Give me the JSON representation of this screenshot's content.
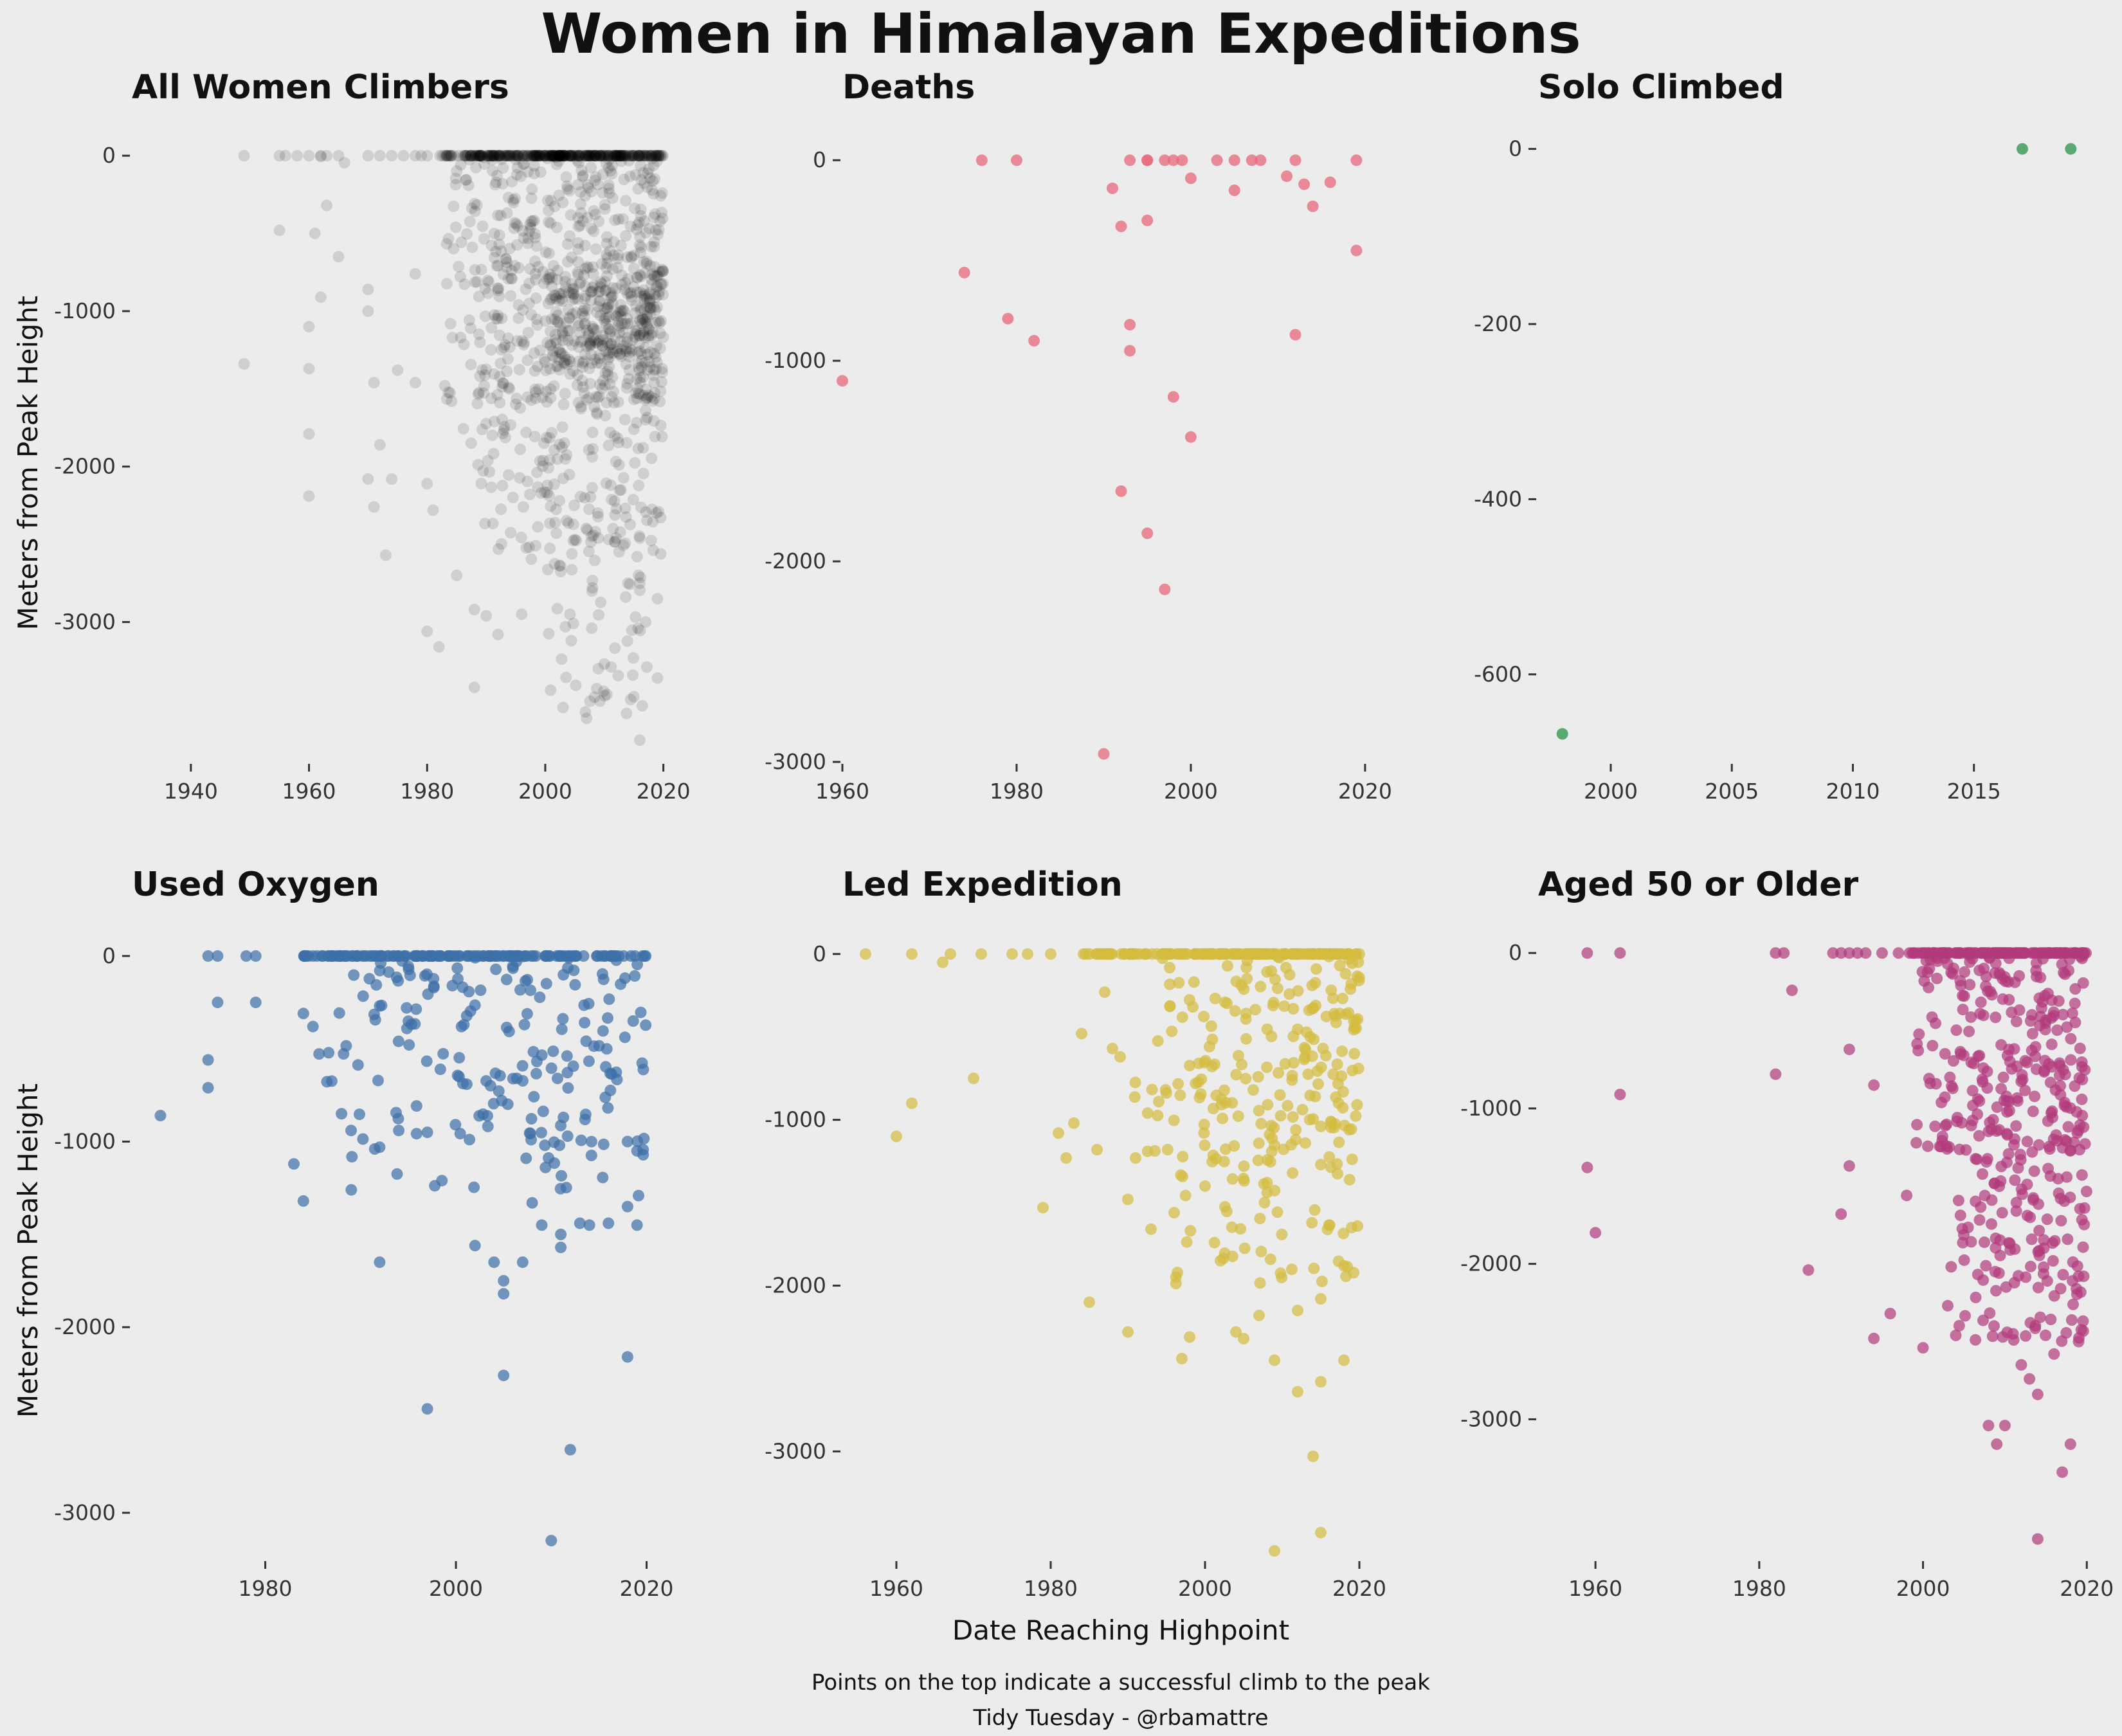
{
  "figure": {
    "title": "Women in Himalayan Expeditions",
    "xlabel": "Date Reaching Highpoint",
    "ylabel": "Meters from Peak Height",
    "caption_lines": [
      "Points on the top indicate a successful climb to the peak",
      "Tidy Tuesday - @rbamattre"
    ],
    "background": "#ececec"
  },
  "chart_data": [
    {
      "type": "scatter",
      "title": "All Women Climbers",
      "color": "#000000",
      "point_opacity": 0.12,
      "xlim": [
        1930,
        2022
      ],
      "ylim": [
        -3900,
        100
      ],
      "xticks": [
        1940,
        1960,
        1980,
        2000,
        2020
      ],
      "yticks": [
        0,
        -1000,
        -2000,
        -3000
      ],
      "seed": 11,
      "summit_points": [
        [
          1949,
          0
        ],
        [
          1955,
          0
        ],
        [
          1956,
          0
        ],
        [
          1958,
          0
        ],
        [
          1960,
          0
        ],
        [
          1962,
          0
        ],
        [
          1963,
          0
        ],
        [
          1965,
          0
        ],
        [
          1970,
          0
        ],
        [
          1972,
          0
        ],
        [
          1974,
          0
        ],
        [
          1976,
          0
        ],
        [
          1978,
          0
        ],
        [
          1979,
          0
        ],
        [
          1980,
          0
        ]
      ],
      "clusters": [
        {
          "x": [
            1982,
            2020
          ],
          "y": [
            0,
            0
          ],
          "n": 340,
          "skew": 1.4
        },
        {
          "x": [
            1983,
            2020
          ],
          "y": [
            -1600,
            0
          ],
          "n": 520,
          "skew": 1.3
        },
        {
          "x": [
            2000,
            2020
          ],
          "y": [
            -1400,
            -700
          ],
          "n": 230,
          "skew": 1.0
        },
        {
          "x": [
            1986,
            2020
          ],
          "y": [
            -2600,
            -1500
          ],
          "n": 180,
          "skew": 1.2
        },
        {
          "x": [
            2000,
            2018
          ],
          "y": [
            -3600,
            -2600
          ],
          "n": 50,
          "skew": 1.0
        }
      ],
      "points": [
        [
          1949,
          -1340
        ],
        [
          1955,
          -480
        ],
        [
          1960,
          -1100
        ],
        [
          1960,
          -1370
        ],
        [
          1960,
          -1790
        ],
        [
          1960,
          -2190
        ],
        [
          1961,
          -500
        ],
        [
          1962,
          -910
        ],
        [
          1963,
          -320
        ],
        [
          1965,
          -650
        ],
        [
          1966,
          -45
        ],
        [
          1970,
          -860
        ],
        [
          1970,
          -2080
        ],
        [
          1971,
          -1460
        ],
        [
          1971,
          -2260
        ],
        [
          1972,
          -1860
        ],
        [
          1973,
          -2570
        ],
        [
          1974,
          -2080
        ],
        [
          1975,
          -1380
        ],
        [
          1978,
          -1460
        ],
        [
          1980,
          -3060
        ],
        [
          1980,
          -2110
        ],
        [
          1981,
          -2280
        ],
        [
          1982,
          -3160
        ],
        [
          1983,
          -1480
        ],
        [
          1985,
          -2700
        ],
        [
          1988,
          -3420
        ],
        [
          1988,
          -2920
        ],
        [
          1990,
          -2960
        ],
        [
          1992,
          -3080
        ],
        [
          1996,
          -2950
        ],
        [
          2003,
          -3550
        ],
        [
          2007,
          -3620
        ],
        [
          2008,
          -2780
        ],
        [
          2010,
          -3270
        ],
        [
          2015,
          -3480
        ],
        [
          2016,
          -3760
        ],
        [
          2017,
          -3000
        ],
        [
          2019,
          -3360
        ],
        [
          2019,
          -2850
        ],
        [
          2014,
          -2750
        ],
        [
          2016,
          -2750
        ],
        [
          2005,
          -2470
        ],
        [
          2009,
          -2460
        ],
        [
          2012,
          -2460
        ],
        [
          2016,
          -2460
        ],
        [
          2008,
          -1100
        ],
        [
          2010,
          -1060
        ],
        [
          2013,
          -1080
        ],
        [
          2016,
          -1060
        ],
        [
          2008,
          -1780
        ],
        [
          2011,
          -1780
        ],
        [
          2015,
          -1760
        ],
        [
          1962,
          -5
        ],
        [
          1970,
          -1000
        ],
        [
          1978,
          -760
        ]
      ]
    },
    {
      "type": "scatter",
      "title": "Deaths",
      "color": "#e8677a",
      "point_opacity": 0.75,
      "xlim": [
        1960,
        2022
      ],
      "ylim": [
        -3000,
        100
      ],
      "xticks": [
        1960,
        1980,
        2000,
        2020
      ],
      "yticks": [
        0,
        -1000,
        -2000,
        -3000
      ],
      "points": [
        [
          1960,
          -1100
        ],
        [
          1974,
          -560
        ],
        [
          1976,
          0
        ],
        [
          1979,
          -790
        ],
        [
          1980,
          0
        ],
        [
          1982,
          -900
        ],
        [
          1990,
          -2960
        ],
        [
          1991,
          -140
        ],
        [
          1992,
          -330
        ],
        [
          1992,
          -1650
        ],
        [
          1993,
          -950
        ],
        [
          1993,
          -820
        ],
        [
          1993,
          0
        ],
        [
          1995,
          0
        ],
        [
          1995,
          0
        ],
        [
          1995,
          -300
        ],
        [
          1995,
          -1860
        ],
        [
          1997,
          0
        ],
        [
          1997,
          -2140
        ],
        [
          1998,
          -1180
        ],
        [
          1998,
          0
        ],
        [
          1999,
          0
        ],
        [
          2000,
          -1380
        ],
        [
          2000,
          -90
        ],
        [
          2003,
          0
        ],
        [
          2005,
          -150
        ],
        [
          2005,
          0
        ],
        [
          2007,
          0
        ],
        [
          2008,
          0
        ],
        [
          2011,
          -80
        ],
        [
          2012,
          0
        ],
        [
          2012,
          -870
        ],
        [
          2013,
          -120
        ],
        [
          2014,
          -230
        ],
        [
          2016,
          -110
        ],
        [
          2019,
          0
        ],
        [
          2019,
          -450
        ]
      ]
    },
    {
      "type": "scatter",
      "title": "Solo Climbed",
      "color": "#3f9e5a",
      "point_opacity": 0.85,
      "xlim": [
        1997,
        2020
      ],
      "ylim": [
        -700,
        10
      ],
      "xticks": [
        2000,
        2005,
        2010,
        2015
      ],
      "yticks": [
        0,
        -200,
        -400,
        -600
      ],
      "points": [
        [
          1998,
          -668
        ],
        [
          2017,
          0
        ],
        [
          2019,
          0
        ]
      ]
    },
    {
      "type": "scatter",
      "title": "Used Oxygen",
      "color": "#3d6fa8",
      "point_opacity": 0.7,
      "xlim": [
        1966,
        2023
      ],
      "ylim": [
        -3250,
        100
      ],
      "xticks": [
        1980,
        2000,
        2020
      ],
      "yticks": [
        0,
        -1000,
        -2000,
        -3000
      ],
      "seed": 22,
      "summit_points": [
        [
          1974,
          0
        ],
        [
          1975,
          0
        ],
        [
          1978,
          0
        ],
        [
          1979,
          0
        ]
      ],
      "clusters": [
        {
          "x": [
            1984,
            2020
          ],
          "y": [
            0,
            0
          ],
          "n": 150,
          "skew": 1.0
        },
        {
          "x": [
            1985,
            2020
          ],
          "y": [
            -700,
            0
          ],
          "n": 120,
          "skew": 1.3
        },
        {
          "x": [
            1988,
            2020
          ],
          "y": [
            -1300,
            -600
          ],
          "n": 70,
          "skew": 1.1
        }
      ],
      "points": [
        [
          1969,
          -860
        ],
        [
          1974,
          -560
        ],
        [
          1974,
          -710
        ],
        [
          1975,
          -250
        ],
        [
          1979,
          -250
        ],
        [
          1983,
          -1120
        ],
        [
          1984,
          -1320
        ],
        [
          1984,
          -310
        ],
        [
          1985,
          -380
        ],
        [
          1988,
          -850
        ],
        [
          1989,
          -940
        ],
        [
          1992,
          -1030
        ],
        [
          1992,
          -1650
        ],
        [
          1994,
          -940
        ],
        [
          1997,
          -950
        ],
        [
          1997,
          -2440
        ],
        [
          2002,
          -1560
        ],
        [
          2004,
          -1650
        ],
        [
          2005,
          -1750
        ],
        [
          2005,
          -1820
        ],
        [
          2005,
          -2260
        ],
        [
          2007,
          -1650
        ],
        [
          2008,
          -1330
        ],
        [
          2009,
          -1450
        ],
        [
          2011,
          -1500
        ],
        [
          2011,
          -1570
        ],
        [
          2012,
          -2660
        ],
        [
          2013,
          -1440
        ],
        [
          2014,
          -1450
        ],
        [
          2016,
          -1440
        ],
        [
          2018,
          -1350
        ],
        [
          2018,
          -2160
        ],
        [
          2019,
          -1450
        ],
        [
          2010,
          -3150
        ],
        [
          2018,
          -1000
        ],
        [
          2019,
          -1050
        ]
      ]
    },
    {
      "type": "scatter",
      "title": "Led Expedition",
      "color": "#d4bc3f",
      "point_opacity": 0.7,
      "xlim": [
        1953,
        2023
      ],
      "ylim": [
        -3650,
        100
      ],
      "xticks": [
        1960,
        1980,
        2000,
        2020
      ],
      "yticks": [
        0,
        -1000,
        -2000,
        -3000
      ],
      "seed": 33,
      "summit_points": [
        [
          1956,
          0
        ],
        [
          1962,
          0
        ],
        [
          1967,
          0
        ],
        [
          1971,
          0
        ],
        [
          1975,
          0
        ],
        [
          1977,
          0
        ],
        [
          1980,
          0
        ]
      ],
      "clusters": [
        {
          "x": [
            1983,
            2020
          ],
          "y": [
            0,
            0
          ],
          "n": 170,
          "skew": 1.2
        },
        {
          "x": [
            1990,
            2020
          ],
          "y": [
            -1300,
            0
          ],
          "n": 210,
          "skew": 1.4
        },
        {
          "x": [
            1996,
            2020
          ],
          "y": [
            -2000,
            -1300
          ],
          "n": 50,
          "skew": 1.1
        }
      ],
      "points": [
        [
          1960,
          -1100
        ],
        [
          1962,
          -900
        ],
        [
          1966,
          -50
        ],
        [
          1970,
          -750
        ],
        [
          1979,
          -1530
        ],
        [
          1981,
          -1080
        ],
        [
          1982,
          -1230
        ],
        [
          1983,
          -1020
        ],
        [
          1984,
          -480
        ],
        [
          1985,
          -2100
        ],
        [
          1986,
          -1180
        ],
        [
          1987,
          -230
        ],
        [
          1988,
          -570
        ],
        [
          1989,
          -620
        ],
        [
          1990,
          -2280
        ],
        [
          1990,
          -1480
        ],
        [
          1991,
          -1230
        ],
        [
          1993,
          -1660
        ],
        [
          1994,
          -890
        ],
        [
          1996,
          -1560
        ],
        [
          1997,
          -2440
        ],
        [
          1998,
          -2310
        ],
        [
          2000,
          -1400
        ],
        [
          2002,
          -1850
        ],
        [
          2004,
          -2280
        ],
        [
          2005,
          -2320
        ],
        [
          2007,
          -2180
        ],
        [
          2009,
          -3600
        ],
        [
          2009,
          -2450
        ],
        [
          2012,
          -2640
        ],
        [
          2012,
          -2150
        ],
        [
          2014,
          -3030
        ],
        [
          2015,
          -3490
        ],
        [
          2015,
          -2580
        ],
        [
          2015,
          -2080
        ],
        [
          2018,
          -2450
        ],
        [
          2018,
          -1880
        ],
        [
          2019,
          -1650
        ]
      ]
    },
    {
      "type": "scatter",
      "title": "Aged 50 or Older",
      "color": "#b23a7c",
      "point_opacity": 0.7,
      "xlim": [
        1953,
        2021
      ],
      "ylim": [
        -3900,
        100
      ],
      "xticks": [
        1960,
        1980,
        2000,
        2020
      ],
      "yticks": [
        0,
        -1000,
        -2000,
        -3000
      ],
      "seed": 44,
      "summit_points": [
        [
          1959,
          0
        ],
        [
          1963,
          0
        ],
        [
          1982,
          0
        ],
        [
          1983,
          0
        ],
        [
          1989,
          0
        ],
        [
          1990,
          0
        ],
        [
          1991,
          0
        ],
        [
          1992,
          0
        ],
        [
          1993,
          0
        ],
        [
          1995,
          0
        ],
        [
          1997,
          0
        ]
      ],
      "clusters": [
        {
          "x": [
            1998,
            2020
          ],
          "y": [
            0,
            0
          ],
          "n": 150,
          "skew": 1.0
        },
        {
          "x": [
            1999,
            2020
          ],
          "y": [
            -1300,
            0
          ],
          "n": 250,
          "skew": 1.3
        },
        {
          "x": [
            2003,
            2020
          ],
          "y": [
            -2500,
            -1300
          ],
          "n": 130,
          "skew": 1.1
        }
      ],
      "points": [
        [
          1959,
          -1380
        ],
        [
          1960,
          -1800
        ],
        [
          1963,
          -910
        ],
        [
          1982,
          -780
        ],
        [
          1984,
          -240
        ],
        [
          1986,
          -2040
        ],
        [
          1990,
          -1680
        ],
        [
          1991,
          -1370
        ],
        [
          1991,
          -620
        ],
        [
          1994,
          -2480
        ],
        [
          1994,
          -850
        ],
        [
          1996,
          -2320
        ],
        [
          1998,
          -1560
        ],
        [
          2000,
          -2540
        ],
        [
          2004,
          -2460
        ],
        [
          2008,
          -3040
        ],
        [
          2009,
          -3160
        ],
        [
          2010,
          -3040
        ],
        [
          2011,
          -2450
        ],
        [
          2012,
          -2650
        ],
        [
          2013,
          -2740
        ],
        [
          2014,
          -3770
        ],
        [
          2014,
          -2840
        ],
        [
          2016,
          -2580
        ],
        [
          2017,
          -3340
        ],
        [
          2018,
          -3160
        ],
        [
          2019,
          -2080
        ],
        [
          2019,
          -2500
        ]
      ]
    }
  ]
}
